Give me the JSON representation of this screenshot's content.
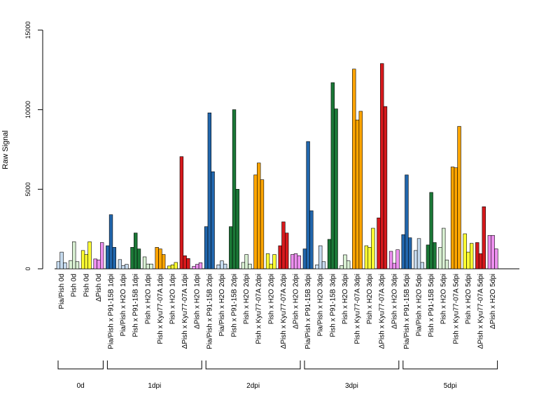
{
  "chart_data": {
    "type": "bar",
    "xlabel": "",
    "ylabel": "Raw Signal",
    "ylim": [
      0,
      15000
    ],
    "yticks": [
      0,
      5000,
      10000,
      15000
    ],
    "grid": false,
    "colors": {
      "ltblue": "#c6dbef",
      "blue": "#2166ac",
      "ltgreen": "#d9f0d3",
      "green": "#1b7837",
      "yellow": "#ffff33",
      "orange": "#ffa500",
      "red": "#d7191c",
      "pink": "#ee90f0"
    },
    "groups": [
      {
        "label": "Pia/Pish 0d",
        "color": "ltblue",
        "values": [
          450,
          1050,
          380
        ]
      },
      {
        "label": "Pish 0d",
        "color": "ltgreen",
        "values": [
          520,
          1700,
          450
        ]
      },
      {
        "label": "Pish 0d",
        "color": "yellow",
        "values": [
          1150,
          900,
          1700
        ]
      },
      {
        "label": "ΔPish 0d",
        "color": "pink",
        "values": [
          620,
          560,
          1650
        ]
      },
      {
        "label": "Pia/Pish x P91-15B 1dpi",
        "color": "blue",
        "values": [
          1450,
          3400,
          1350
        ]
      },
      {
        "label": "Pia/Pish x H2O 1dpi",
        "color": "ltblue",
        "values": [
          580,
          200,
          280
        ]
      },
      {
        "label": "Pish x P91-15B 1dpi",
        "color": "green",
        "values": [
          1350,
          2250,
          1250
        ]
      },
      {
        "label": "Pish x H2O 1dpi",
        "color": "ltgreen",
        "values": [
          750,
          300,
          300
        ]
      },
      {
        "label": "Pish x Kyu77-07A 1dpi",
        "color": "orange",
        "values": [
          1350,
          1250,
          900
        ]
      },
      {
        "label": "Pish x H2O 1dpi",
        "color": "yellow",
        "values": [
          180,
          250,
          400
        ]
      },
      {
        "label": "ΔPish x Kyu77-07A 1dpi",
        "color": "red",
        "values": [
          7050,
          820,
          650
        ]
      },
      {
        "label": "ΔPish x H2O 1dpi",
        "color": "pink",
        "values": [
          150,
          280,
          380
        ]
      },
      {
        "label": "Pia/Pish x P91-15B 2dpi",
        "color": "blue",
        "values": [
          2650,
          9800,
          6100
        ]
      },
      {
        "label": "Pia/Pish x H2O 2dpi",
        "color": "ltblue",
        "values": [
          250,
          500,
          300
        ]
      },
      {
        "label": "Pish x P91-15B 2dpi",
        "color": "green",
        "values": [
          2650,
          10000,
          5000
        ]
      },
      {
        "label": "Pish x H2O 2dpi",
        "color": "ltgreen",
        "values": [
          400,
          900,
          300
        ]
      },
      {
        "label": "Pish x Kyu77-07A 2dpi",
        "color": "orange",
        "values": [
          5900,
          6650,
          5600
        ]
      },
      {
        "label": "Pish x H2O 2dpi",
        "color": "yellow",
        "values": [
          950,
          300,
          900
        ]
      },
      {
        "label": "ΔPish x Kyu77-07A 2dpi",
        "color": "red",
        "values": [
          1450,
          2950,
          2250
        ]
      },
      {
        "label": "ΔPish x H2O 2dpi",
        "color": "pink",
        "values": [
          900,
          950,
          820
        ]
      },
      {
        "label": "Pia/Pish x P91-15B 3dpi",
        "color": "blue",
        "values": [
          1250,
          8000,
          3650
        ]
      },
      {
        "label": "Pia/Pish x H2O 3dpi",
        "color": "ltblue",
        "values": [
          250,
          1450,
          450
        ]
      },
      {
        "label": "Pish x P91-15B 3dpi",
        "color": "green",
        "values": [
          1850,
          11700,
          10050
        ]
      },
      {
        "label": "Pish x H2O 3dpi",
        "color": "ltgreen",
        "values": [
          200,
          880,
          500
        ]
      },
      {
        "label": "Pish x Kyu77-07A 3dpi",
        "color": "orange",
        "values": [
          12550,
          9350,
          9900
        ]
      },
      {
        "label": "Pish x H2O 3dpi",
        "color": "yellow",
        "values": [
          1450,
          1350,
          2550
        ]
      },
      {
        "label": "ΔPish x Kyu77-07A 3dpi",
        "color": "red",
        "values": [
          3200,
          12900,
          10200
        ]
      },
      {
        "label": "ΔPish x H2O 3dpi",
        "color": "pink",
        "values": [
          1100,
          350,
          1200
        ]
      },
      {
        "label": "Pia/Pish x P91-15B 5dpi",
        "color": "blue",
        "values": [
          2150,
          5900,
          1950
        ]
      },
      {
        "label": "Pia/Pish x H2O 5dpi",
        "color": "ltblue",
        "values": [
          1150,
          1900,
          400
        ]
      },
      {
        "label": "Pish x P91-15B 5dpi",
        "color": "green",
        "values": [
          1500,
          4800,
          1650
        ]
      },
      {
        "label": "Pish x H2O 5dpi",
        "color": "ltgreen",
        "values": [
          1350,
          2550,
          550
        ]
      },
      {
        "label": "Pish x Kyu77-07A 5dpi",
        "color": "orange",
        "values": [
          6400,
          6350,
          8950
        ]
      },
      {
        "label": "Pish x H2O 5dpi",
        "color": "yellow",
        "values": [
          2200,
          1050,
          1600
        ]
      },
      {
        "label": "ΔPish x Kyu77-07A 5dpi",
        "color": "red",
        "values": [
          1650,
          950,
          3900
        ]
      },
      {
        "label": "ΔPish x H2O 5dpi",
        "color": "pink",
        "values": [
          2100,
          2100,
          1250
        ]
      }
    ],
    "time_groups": [
      {
        "label": "0d",
        "first": 0,
        "last": 3
      },
      {
        "label": "1dpi",
        "first": 4,
        "last": 11
      },
      {
        "label": "2dpi",
        "first": 12,
        "last": 19
      },
      {
        "label": "3dpi",
        "first": 20,
        "last": 27
      },
      {
        "label": "5dpi",
        "first": 28,
        "last": 35
      }
    ]
  }
}
